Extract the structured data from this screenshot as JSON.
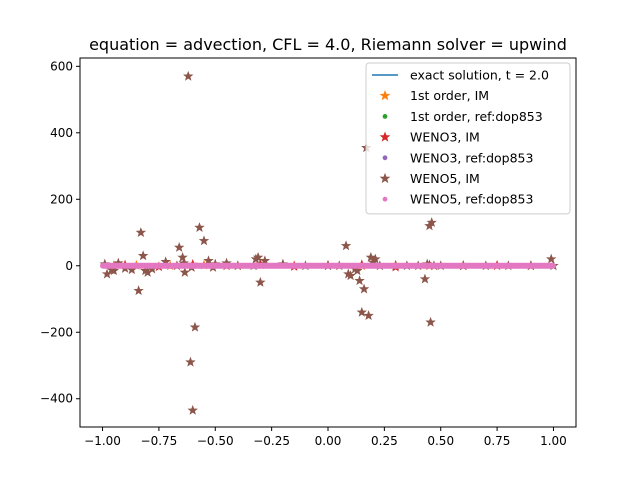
{
  "chart_data": {
    "type": "scatter",
    "title": "equation = advection, CFL = 4.0, Riemann solver = upwind",
    "xlabel": "",
    "ylabel": "",
    "xlim": [
      -1.1,
      1.1
    ],
    "ylim": [
      -485,
      625
    ],
    "xticks": [
      -1.0,
      -0.75,
      -0.5,
      -0.25,
      0.0,
      0.25,
      0.5,
      0.75,
      1.0
    ],
    "xtick_labels": [
      "−1.00",
      "−0.75",
      "−0.50",
      "−0.25",
      "0.00",
      "0.25",
      "0.50",
      "0.75",
      "1.00"
    ],
    "yticks": [
      -400,
      -200,
      0,
      200,
      400,
      600
    ],
    "ytick_labels": [
      "−400",
      "−200",
      "0",
      "200",
      "400",
      "600"
    ],
    "grid": false,
    "legend_position": "top-right",
    "exact": {
      "name": "exact solution, t = 2.0",
      "color": "#1f77b4",
      "x": [
        -1.0,
        1.0
      ],
      "y": [
        0,
        0
      ]
    },
    "series": [
      {
        "name": "1st order, IM",
        "color": "#ff7f0e",
        "marker": "star",
        "x": [
          -0.95,
          -0.85,
          -0.7,
          -0.55,
          -0.4,
          -0.3,
          -0.15,
          0.0,
          0.15,
          0.3,
          0.45,
          0.6,
          0.75,
          0.9
        ],
        "y": [
          0,
          1,
          0,
          2,
          0,
          3,
          0,
          1,
          0,
          2,
          0,
          1,
          0,
          0
        ]
      },
      {
        "name": "1st order, ref:dop853",
        "color": "#2ca02c",
        "marker": "dot",
        "x": [
          -0.9,
          -0.6,
          -0.3,
          0.0,
          0.3,
          0.6,
          0.9
        ],
        "y": [
          0,
          0,
          0,
          0,
          0,
          0,
          0
        ]
      },
      {
        "name": "WENO3, IM",
        "color": "#d62728",
        "marker": "star",
        "x": [
          -0.9,
          -0.75,
          -0.6,
          -0.45,
          -0.3,
          -0.15,
          0.0,
          0.15,
          0.3,
          0.45,
          0.6,
          0.75,
          0.9
        ],
        "y": [
          2,
          -3,
          4,
          0,
          5,
          -2,
          1,
          3,
          -4,
          2,
          0,
          1,
          0
        ]
      },
      {
        "name": "WENO3, ref:dop853",
        "color": "#9467bd",
        "marker": "dot",
        "x": [
          -0.8,
          -0.4,
          0.0,
          0.4,
          0.8
        ],
        "y": [
          0,
          0,
          0,
          0,
          0
        ]
      },
      {
        "name": "WENO5, IM",
        "color": "#8c564b",
        "marker": "star",
        "x": [
          -0.99,
          -0.98,
          -0.96,
          -0.95,
          -0.93,
          -0.9,
          -0.87,
          -0.84,
          -0.83,
          -0.82,
          -0.81,
          -0.8,
          -0.78,
          -0.72,
          -0.67,
          -0.66,
          -0.645,
          -0.64,
          -0.635,
          -0.62,
          -0.61,
          -0.605,
          -0.6,
          -0.59,
          -0.57,
          -0.55,
          -0.53,
          -0.51,
          -0.5,
          -0.45,
          -0.4,
          -0.33,
          -0.32,
          -0.31,
          -0.3,
          -0.28,
          -0.2,
          -0.1,
          0.0,
          0.05,
          0.08,
          0.09,
          0.1,
          0.12,
          0.13,
          0.14,
          0.15,
          0.16,
          0.17,
          0.18,
          0.19,
          0.2,
          0.21,
          0.23,
          0.3,
          0.35,
          0.4,
          0.43,
          0.44,
          0.45,
          0.455,
          0.46,
          0.47,
          0.5,
          0.6,
          0.7,
          0.8,
          0.9,
          0.99,
          1.0
        ],
        "y": [
          5,
          -25,
          -12,
          -15,
          8,
          -8,
          -12,
          -75,
          100,
          30,
          -15,
          -20,
          -10,
          12,
          0,
          55,
          25,
          8,
          -20,
          570,
          -290,
          -5,
          -435,
          -185,
          115,
          75,
          15,
          -5,
          5,
          8,
          0,
          0,
          20,
          25,
          -50,
          15,
          5,
          0,
          0,
          0,
          60,
          -25,
          -30,
          -10,
          -15,
          -45,
          -140,
          -70,
          355,
          -150,
          25,
          10,
          20,
          0,
          0,
          0,
          0,
          -40,
          5,
          120,
          -170,
          130,
          0,
          0,
          0,
          0,
          0,
          0,
          20,
          0
        ]
      },
      {
        "name": "WENO5, ref:dop853",
        "color": "#e377c2",
        "marker": "dot",
        "x": [
          -1.0,
          1.0
        ],
        "y": [
          0,
          0
        ],
        "dense": true
      }
    ]
  }
}
